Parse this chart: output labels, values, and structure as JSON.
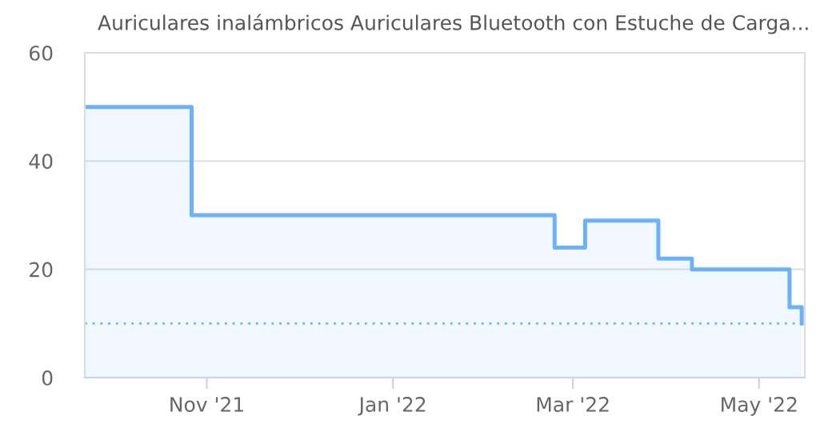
{
  "chart_data": {
    "type": "area",
    "title": "Auriculares inalámbricos Auriculares Bluetooth con Estuche de Carga...",
    "x": [
      "2021-09-22",
      "2021-10-27",
      "2021-10-27",
      "2022-02-23",
      "2022-02-23",
      "2022-03-05",
      "2022-03-05",
      "2022-03-29",
      "2022-03-29",
      "2022-04-09",
      "2022-04-09",
      "2022-05-11",
      "2022-05-11",
      "2022-05-15",
      "2022-05-15"
    ],
    "series": [
      {
        "color": "#6cb2fb",
        "values": [
          50,
          50,
          30,
          30,
          24,
          24,
          29,
          29,
          22,
          22,
          20,
          20,
          13,
          13,
          10
        ]
      }
    ],
    "xlim": [
      "2021-09-22",
      "2022-05-16"
    ],
    "xticks": [
      {
        "value": "2021-11-01",
        "label": "Nov '21"
      },
      {
        "value": "2022-01-01",
        "label": "Jan '22"
      },
      {
        "value": "2022-03-01",
        "label": "Mar '22"
      },
      {
        "value": "2022-05-01",
        "label": "May '22"
      }
    ],
    "ylim": [
      0,
      60
    ],
    "yticks": [
      0,
      20,
      40,
      60
    ],
    "ref_lines": [
      {
        "axis": "y",
        "value": 10,
        "color": "#6cb2fb",
        "line_style": "dotted"
      }
    ],
    "grid": "y",
    "legend": false,
    "marker": "none"
  }
}
